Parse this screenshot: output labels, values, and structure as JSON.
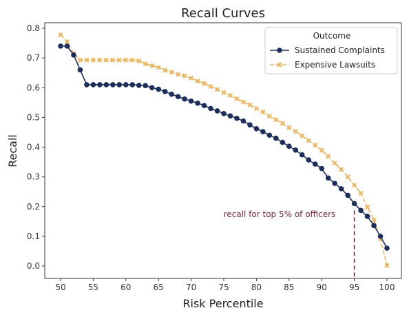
{
  "chart_data": {
    "type": "line",
    "title": "Recall Curves",
    "xlabel": "Risk Percentile",
    "ylabel": "Recall",
    "xlim": [
      50,
      100
    ],
    "ylim": [
      0.0,
      0.8
    ],
    "xticks": [
      50,
      55,
      60,
      65,
      70,
      75,
      80,
      85,
      90,
      95,
      100
    ],
    "yticks": [
      0.0,
      0.1,
      0.2,
      0.3,
      0.4,
      0.5,
      0.6,
      0.7,
      0.8
    ],
    "grid": false,
    "legend": {
      "title": "Outcome",
      "placement": "top-right"
    },
    "x": [
      50,
      51,
      52,
      53,
      54,
      55,
      56,
      57,
      58,
      59,
      60,
      61,
      62,
      63,
      64,
      65,
      66,
      67,
      68,
      69,
      70,
      71,
      72,
      73,
      74,
      75,
      76,
      77,
      78,
      79,
      80,
      81,
      82,
      83,
      84,
      85,
      86,
      87,
      88,
      89,
      90,
      91,
      92,
      93,
      94,
      95,
      96,
      97,
      98,
      99,
      100
    ],
    "series": [
      {
        "name": "Sustained Complaints",
        "color": "#1b2f5e",
        "marker": "circle",
        "linestyle": "solid",
        "values": [
          0.74,
          0.74,
          0.71,
          0.66,
          0.61,
          0.61,
          0.61,
          0.61,
          0.61,
          0.61,
          0.61,
          0.61,
          0.608,
          0.607,
          0.6,
          0.595,
          0.587,
          0.578,
          0.57,
          0.562,
          0.555,
          0.548,
          0.54,
          0.53,
          0.522,
          0.513,
          0.505,
          0.497,
          0.488,
          0.475,
          0.462,
          0.452,
          0.44,
          0.43,
          0.416,
          0.403,
          0.39,
          0.374,
          0.357,
          0.343,
          0.328,
          0.296,
          0.278,
          0.26,
          0.238,
          0.21,
          0.187,
          0.167,
          0.136,
          0.1,
          0.06
        ]
      },
      {
        "name": "Expensive Lawsuits",
        "color": "#f0b457",
        "marker": "x",
        "linestyle": "dashed",
        "values": [
          0.778,
          0.755,
          0.715,
          0.693,
          0.693,
          0.693,
          0.693,
          0.693,
          0.693,
          0.693,
          0.693,
          0.693,
          0.69,
          0.68,
          0.674,
          0.668,
          0.659,
          0.652,
          0.645,
          0.64,
          0.632,
          0.622,
          0.614,
          0.604,
          0.594,
          0.584,
          0.574,
          0.563,
          0.552,
          0.542,
          0.53,
          0.518,
          0.504,
          0.492,
          0.48,
          0.466,
          0.453,
          0.438,
          0.422,
          0.407,
          0.389,
          0.369,
          0.346,
          0.325,
          0.3,
          0.272,
          0.245,
          0.198,
          0.155,
          0.092,
          0.002
        ]
      }
    ],
    "annotation": {
      "text": "recall for top 5% of officers",
      "x": 95,
      "y_top": 0.187,
      "color": "#7a1f33"
    }
  },
  "colors": {
    "axis": "#333333"
  }
}
